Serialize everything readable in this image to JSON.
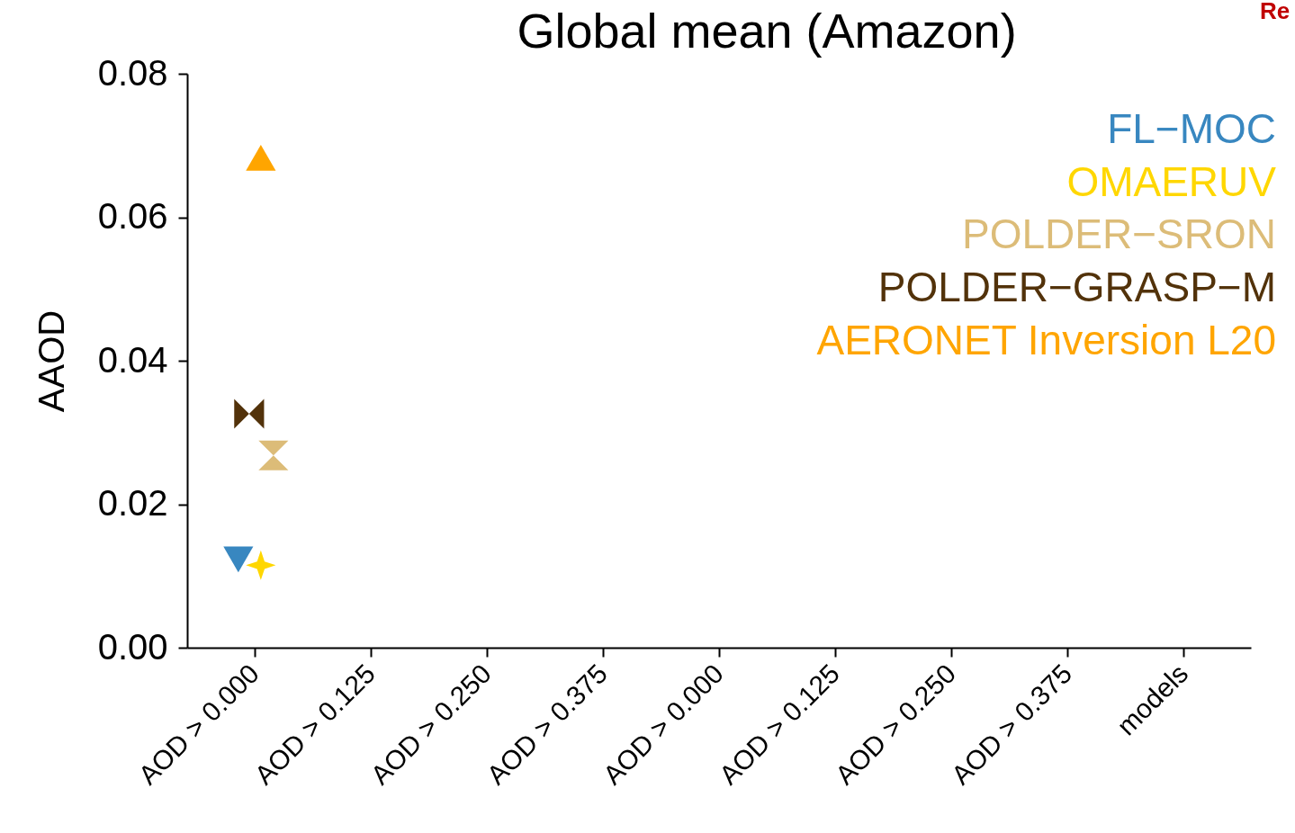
{
  "chart_data": {
    "type": "scatter",
    "title": "Global mean (Amazon)",
    "ylabel": "AAOD",
    "categories": [
      "AOD > 0.000",
      "AOD > 0.125",
      "AOD > 0.250",
      "AOD > 0.375",
      "AOD > 0.000",
      "AOD > 0.125",
      "AOD > 0.250",
      "AOD > 0.375",
      "models"
    ],
    "series": [
      {
        "name": "FL−MOC",
        "color": "#3887c0",
        "x": [
          "AOD > 0.000"
        ],
        "values": [
          0.0123
        ],
        "marker": "triangle-down"
      },
      {
        "name": "OMAERUV",
        "color": "#ffd700",
        "x": [
          "AOD > 0.000"
        ],
        "values": [
          0.0115
        ],
        "marker": "star"
      },
      {
        "name": "POLDER−SRON",
        "color": "#dcbc78",
        "x": [
          "AOD > 0.000"
        ],
        "values": [
          0.0268
        ]
      },
      {
        "name": "POLDER−GRASP−M",
        "color": "#52320a",
        "x": [
          "AOD > 0.000"
        ],
        "values": [
          0.0326
        ]
      },
      {
        "name": "AERONET Inversion L20",
        "color": "#ffa500",
        "x": [
          "AOD > 0.000"
        ],
        "values": [
          0.0683
        ],
        "marker": "triangle-up"
      }
    ],
    "ylim": [
      0,
      0.08
    ],
    "yticks": [
      {
        "value": 0,
        "label": "0.00"
      },
      0.02,
      0.04,
      0.06,
      0.08
    ],
    "legend": "top right",
    "grid": false,
    "annotations": [
      "Re"
    ]
  }
}
